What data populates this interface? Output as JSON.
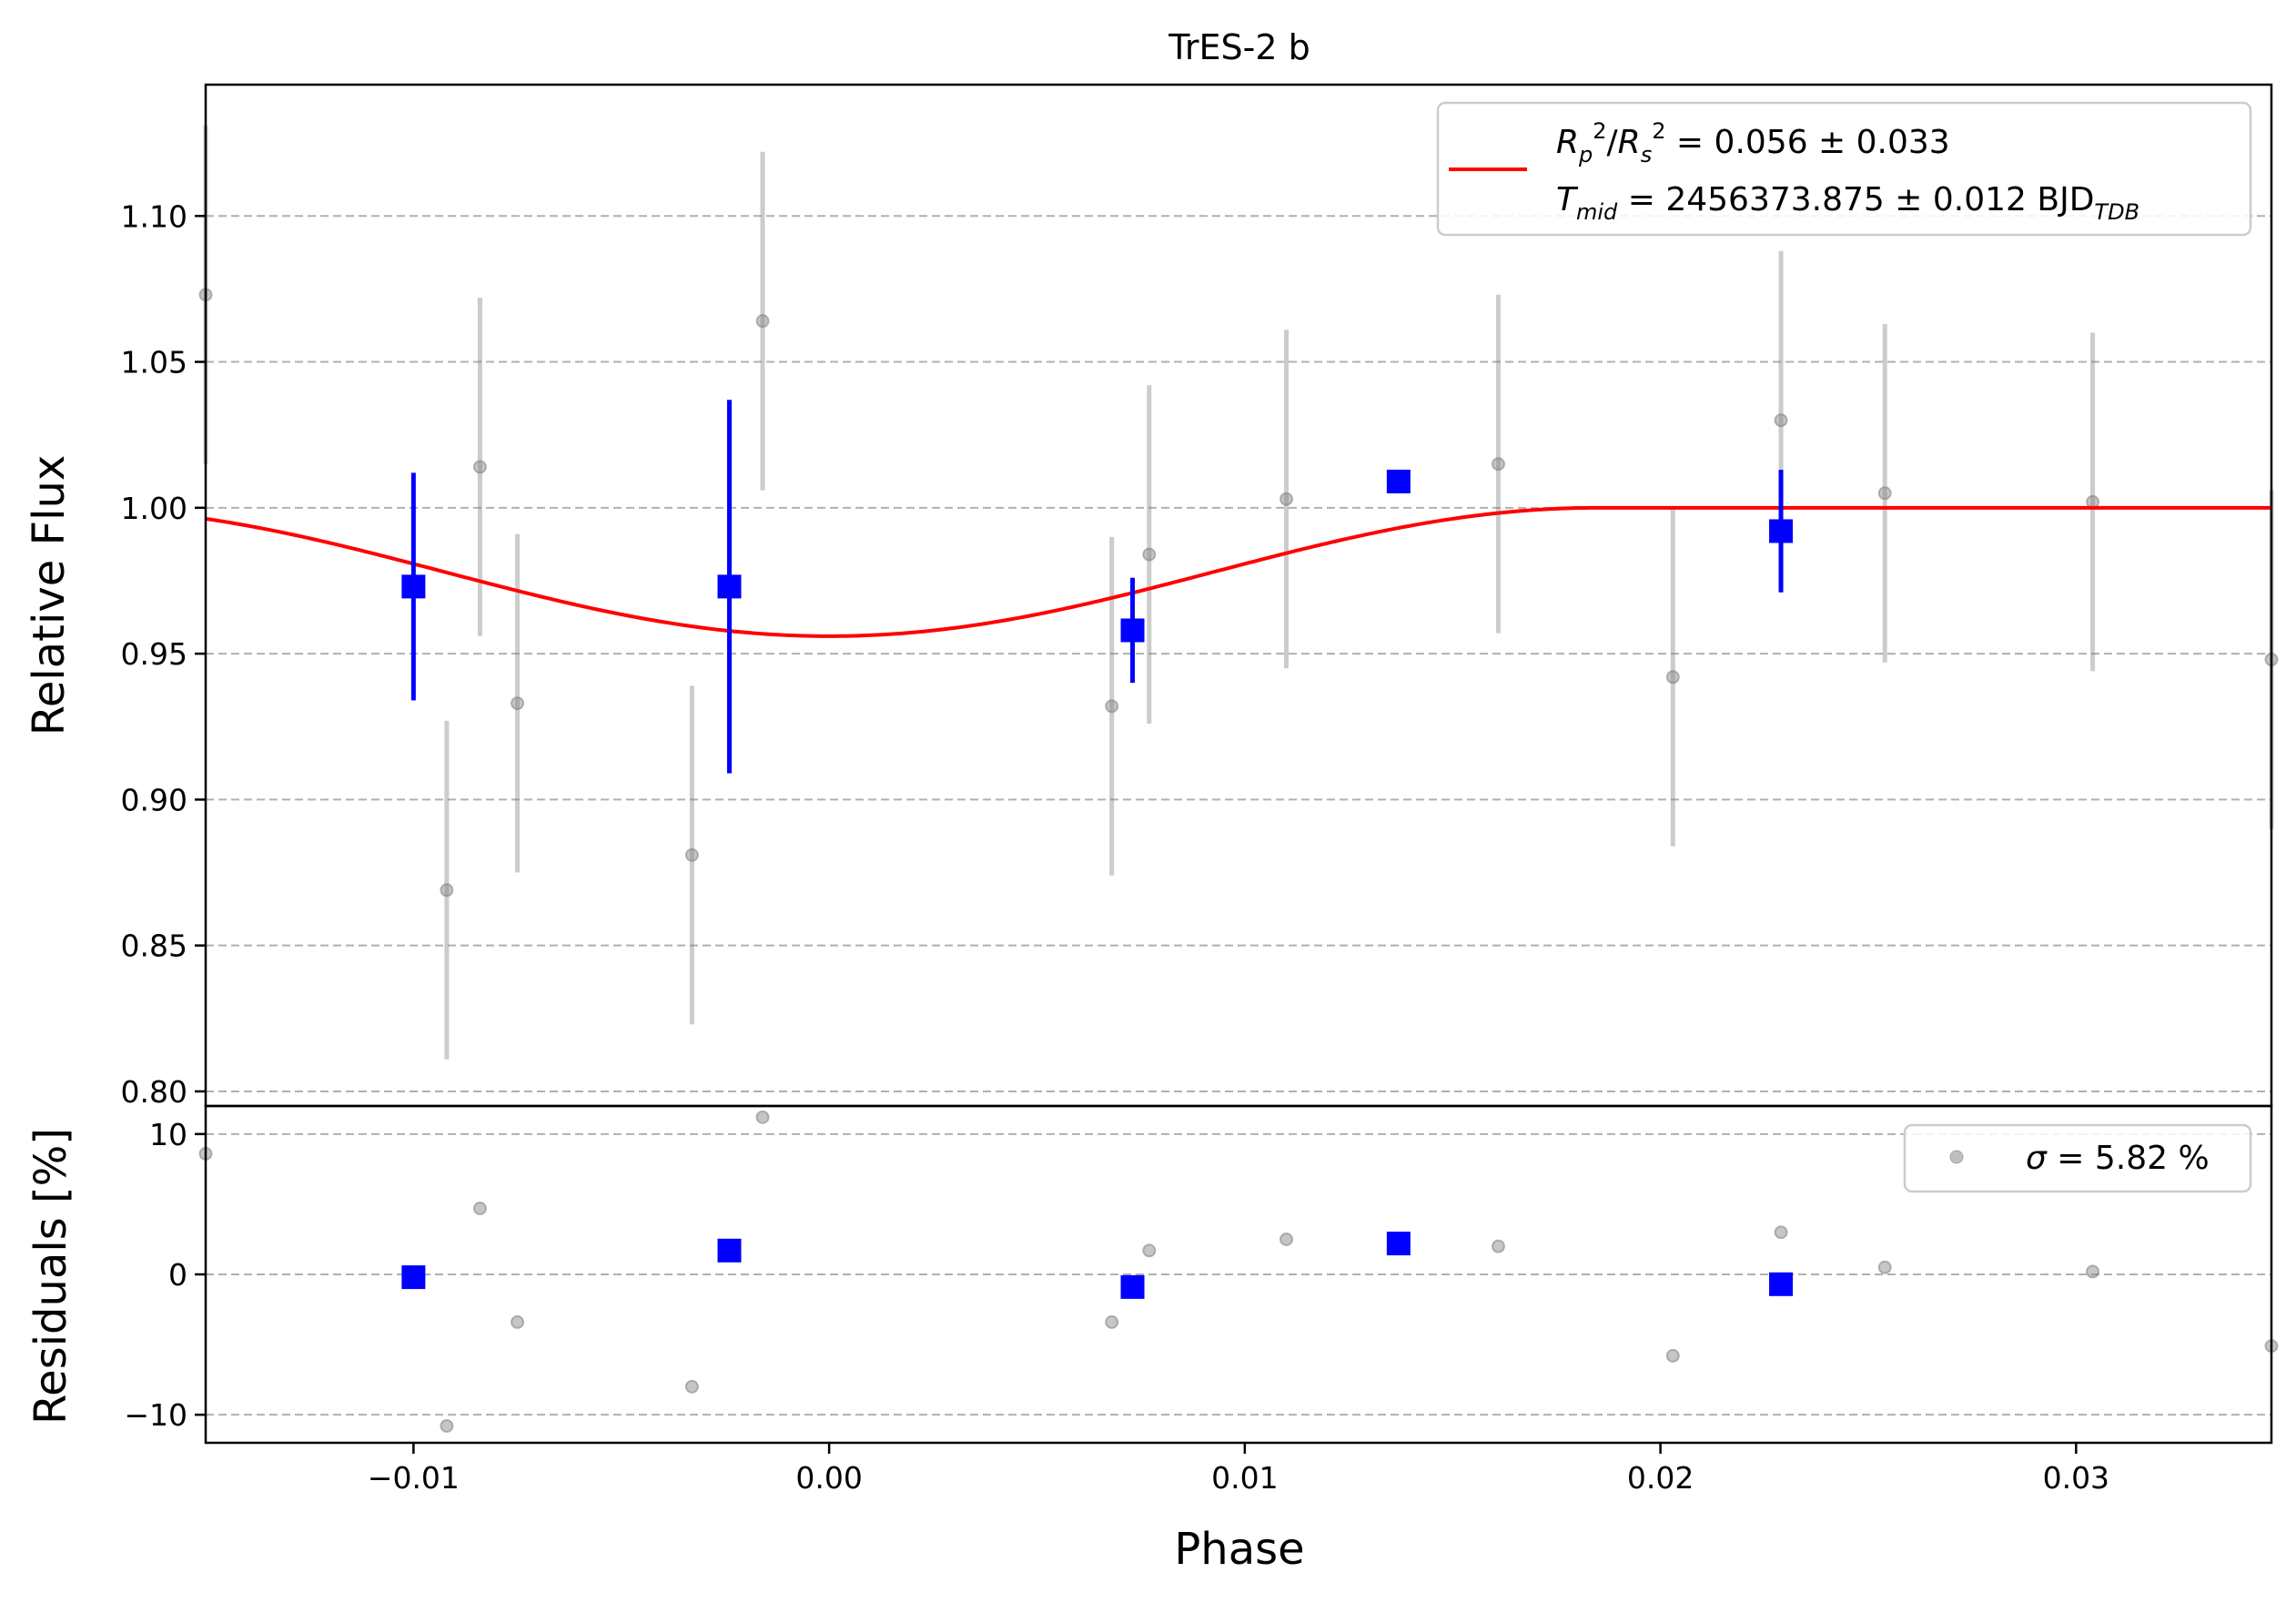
{
  "chart_data": {
    "type": "scatter",
    "title": "TrES-2 b",
    "xlabel": "Phase",
    "xlim": [
      -0.015,
      0.0347
    ],
    "xticks": [
      -0.01,
      0.0,
      0.01,
      0.02,
      0.03
    ],
    "xtick_labels": [
      "−0.01",
      "0.00",
      "0.01",
      "0.02",
      "0.03"
    ],
    "grid": "horizontal dashed",
    "panels": [
      {
        "name": "light_curve",
        "ylabel": "Relative Flux",
        "ylim": [
          0.795,
          1.145
        ],
        "yticks": [
          0.8,
          0.85,
          0.9,
          0.95,
          1.0,
          1.05,
          1.1
        ],
        "ytick_labels": [
          "0.80",
          "0.85",
          "0.90",
          "0.95",
          "1.00",
          "1.05",
          "1.10"
        ],
        "legend_position": "upper-right",
        "legend": [
          {
            "mark": "red-line",
            "lines": [
              {
                "text": "R",
                "sub": "p",
                "sup": "2",
                "rest": "/R"
              },
              {
                "text": "T",
                "sub": "mid",
                "rest": " = 2456373.875 ± 0.012 BJD",
                "sub2": "TDB"
              }
            ]
          }
        ],
        "legend_line1_math": "R_p²/R_s²",
        "legend_line1_value": " = 0.056 ± 0.033",
        "legend_line2_math": "T_mid",
        "legend_line2_value": " = 2456373.875 ± 0.012 BJD",
        "legend_line2_unit_sub": "TDB",
        "series": [
          {
            "kind": "raw",
            "color": "#808080",
            "points": [
              {
                "x": -0.015,
                "y": 1.073,
                "err": 0.058
              },
              {
                "x": -0.0092,
                "y": 0.869,
                "err": 0.058
              },
              {
                "x": -0.0084,
                "y": 1.014,
                "err": 0.058
              },
              {
                "x": -0.0075,
                "y": 0.933,
                "err": 0.058
              },
              {
                "x": -0.0033,
                "y": 0.881,
                "err": 0.058
              },
              {
                "x": -0.0016,
                "y": 1.064,
                "err": 0.058
              },
              {
                "x": 0.0068,
                "y": 0.932,
                "err": 0.058
              },
              {
                "x": 0.0077,
                "y": 0.984,
                "err": 0.058
              },
              {
                "x": 0.011,
                "y": 1.003,
                "err": 0.058
              },
              {
                "x": 0.0161,
                "y": 1.015,
                "err": 0.058
              },
              {
                "x": 0.0203,
                "y": 0.942,
                "err": 0.058
              },
              {
                "x": 0.0229,
                "y": 1.03,
                "err": 0.058
              },
              {
                "x": 0.0254,
                "y": 1.005,
                "err": 0.058
              },
              {
                "x": 0.0304,
                "y": 1.002,
                "err": 0.058
              },
              {
                "x": 0.0347,
                "y": 0.948,
                "err": 0.058
              }
            ]
          },
          {
            "kind": "binned",
            "color": "#0000ff",
            "points": [
              {
                "x": -0.01,
                "y": 0.973,
                "err": 0.039
              },
              {
                "x": -0.0024,
                "y": 0.973,
                "err": 0.064
              },
              {
                "x": 0.0073,
                "y": 0.958,
                "err": 0.018
              },
              {
                "x": 0.0137,
                "y": 1.009,
                "err": 0.004
              },
              {
                "x": 0.0229,
                "y": 0.992,
                "err": 0.021
              }
            ]
          },
          {
            "kind": "model",
            "color": "#ff0000",
            "depth": 0.044,
            "half_duration": 0.0185,
            "points_note": ""
          }
        ]
      },
      {
        "name": "residuals",
        "ylabel": "Residuals [%]",
        "ylim": [
          -12,
          12
        ],
        "yticks": [
          -10,
          0,
          10
        ],
        "ytick_labels": [
          "−10",
          "0",
          "10"
        ],
        "legend_position": "upper-right",
        "legend_text_prefix": "σ",
        "legend_text": " = 5.82 %",
        "series": [
          {
            "kind": "raw",
            "color": "#808080",
            "points": [
              {
                "x": -0.015,
                "y": 8.6
              },
              {
                "x": -0.0092,
                "y": -10.8
              },
              {
                "x": -0.0084,
                "y": 4.7
              },
              {
                "x": -0.0075,
                "y": -3.4
              },
              {
                "x": -0.0033,
                "y": -8.0
              },
              {
                "x": -0.0016,
                "y": 11.2
              },
              {
                "x": 0.0068,
                "y": -3.4
              },
              {
                "x": 0.0077,
                "y": 1.7
              },
              {
                "x": 0.011,
                "y": 2.5
              },
              {
                "x": 0.0161,
                "y": 2.0
              },
              {
                "x": 0.0203,
                "y": -5.8
              },
              {
                "x": 0.0229,
                "y": 3.0
              },
              {
                "x": 0.0254,
                "y": 0.5
              },
              {
                "x": 0.0304,
                "y": 0.2
              },
              {
                "x": 0.0347,
                "y": -5.1
              }
            ]
          },
          {
            "kind": "binned",
            "color": "#0000ff",
            "points": [
              {
                "x": -0.01,
                "y": -0.2
              },
              {
                "x": -0.0024,
                "y": 1.7
              },
              {
                "x": 0.0073,
                "y": -0.9
              },
              {
                "x": 0.0137,
                "y": 2.2
              },
              {
                "x": 0.0229,
                "y": -0.7
              }
            ]
          }
        ]
      }
    ]
  }
}
